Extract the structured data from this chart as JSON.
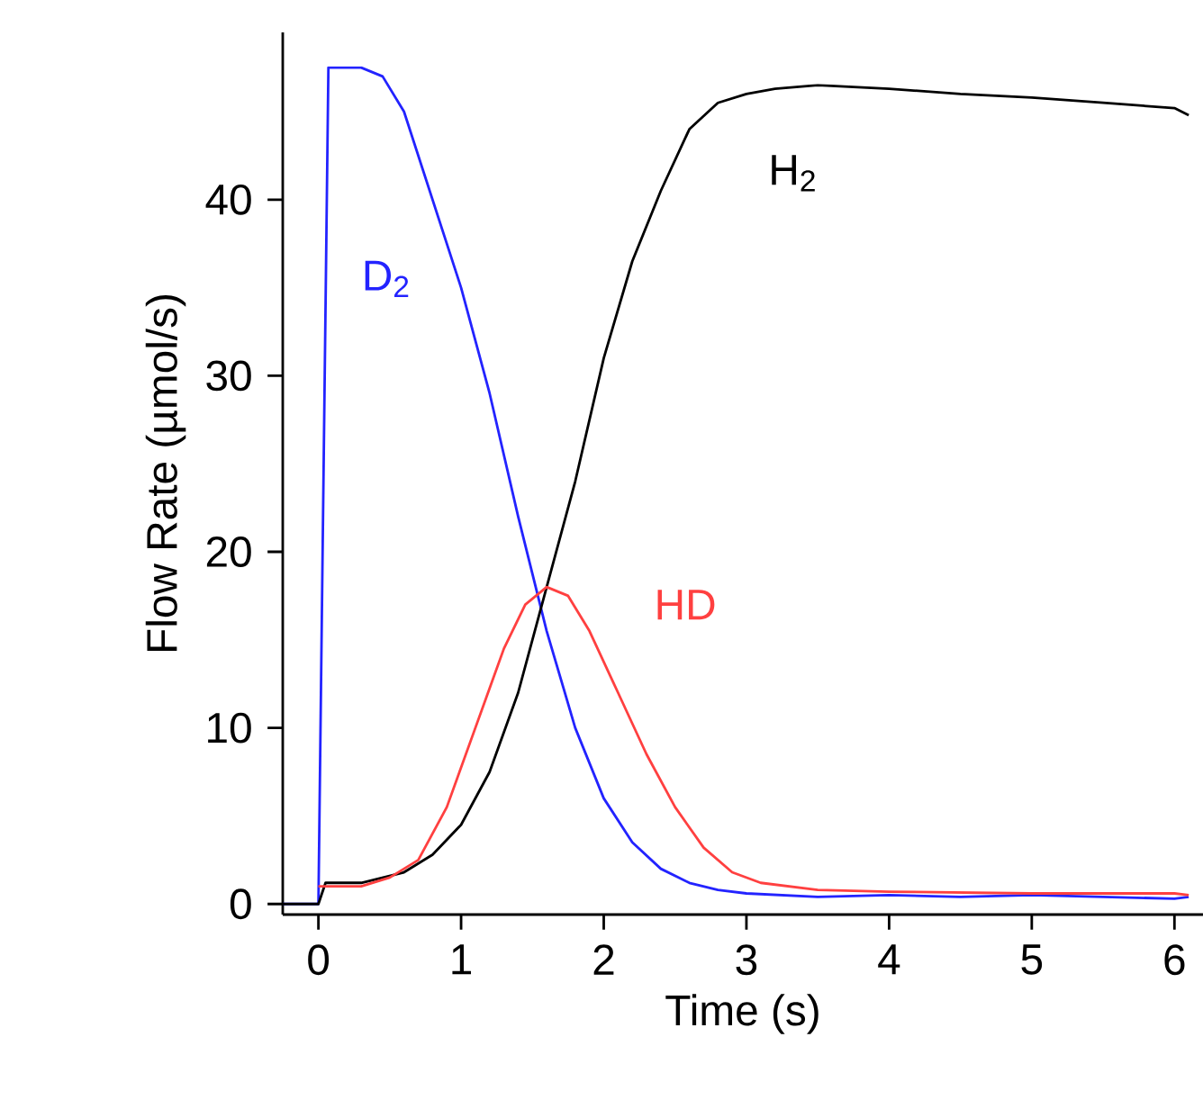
{
  "chart_data": {
    "type": "line",
    "xlabel": "Time (s)",
    "ylabel": "Flow Rate (µmol/s)",
    "xlim": [
      -0.25,
      6.2
    ],
    "ylim": [
      -0.6,
      49.5
    ],
    "xticks": [
      0,
      1,
      2,
      3,
      4,
      5,
      6
    ],
    "yticks": [
      0,
      10,
      20,
      30,
      40
    ],
    "grid": false,
    "legend": false,
    "marker": "none",
    "line_style": "solid",
    "series": [
      {
        "name": "D$_{2}$",
        "color": "#2323ff",
        "x": [
          -0.25,
          0,
          0.07,
          0.3,
          0.45,
          0.6,
          0.8,
          1.0,
          1.2,
          1.4,
          1.6,
          1.8,
          2.0,
          2.2,
          2.4,
          2.6,
          2.8,
          3.0,
          3.5,
          4.0,
          4.5,
          5.0,
          5.5,
          6.0,
          6.1
        ],
        "values": [
          0,
          0,
          47.5,
          47.5,
          47.0,
          45,
          40,
          35,
          29,
          22,
          15.5,
          10,
          6,
          3.5,
          2,
          1.2,
          0.8,
          0.6,
          0.4,
          0.5,
          0.4,
          0.5,
          0.4,
          0.3,
          0.4
        ]
      },
      {
        "name": "H$_{2}$",
        "color": "#000000",
        "x": [
          -0.25,
          0,
          0.05,
          0.3,
          0.6,
          0.8,
          1.0,
          1.2,
          1.4,
          1.6,
          1.8,
          2.0,
          2.2,
          2.4,
          2.6,
          2.8,
          3.0,
          3.2,
          3.5,
          4.0,
          4.5,
          5.0,
          5.5,
          6.0,
          6.1
        ],
        "values": [
          0,
          0,
          1.2,
          1.2,
          1.8,
          2.8,
          4.5,
          7.5,
          12,
          18,
          24,
          31,
          36.5,
          40.5,
          44,
          45.5,
          46,
          46.3,
          46.5,
          46.3,
          46,
          45.8,
          45.5,
          45.2,
          44.8
        ]
      },
      {
        "name": "HD",
        "color": "#ff4040",
        "x": [
          0,
          0.3,
          0.5,
          0.7,
          0.9,
          1.1,
          1.3,
          1.45,
          1.6,
          1.75,
          1.9,
          2.1,
          2.3,
          2.5,
          2.7,
          2.9,
          3.1,
          3.5,
          4.0,
          5.0,
          6.0,
          6.1
        ],
        "values": [
          1,
          1.0,
          1.5,
          2.5,
          5.5,
          10,
          14.5,
          17,
          18,
          17.5,
          15.5,
          12,
          8.5,
          5.5,
          3.2,
          1.8,
          1.2,
          0.8,
          0.7,
          0.6,
          0.6,
          0.5
        ]
      }
    ]
  }
}
